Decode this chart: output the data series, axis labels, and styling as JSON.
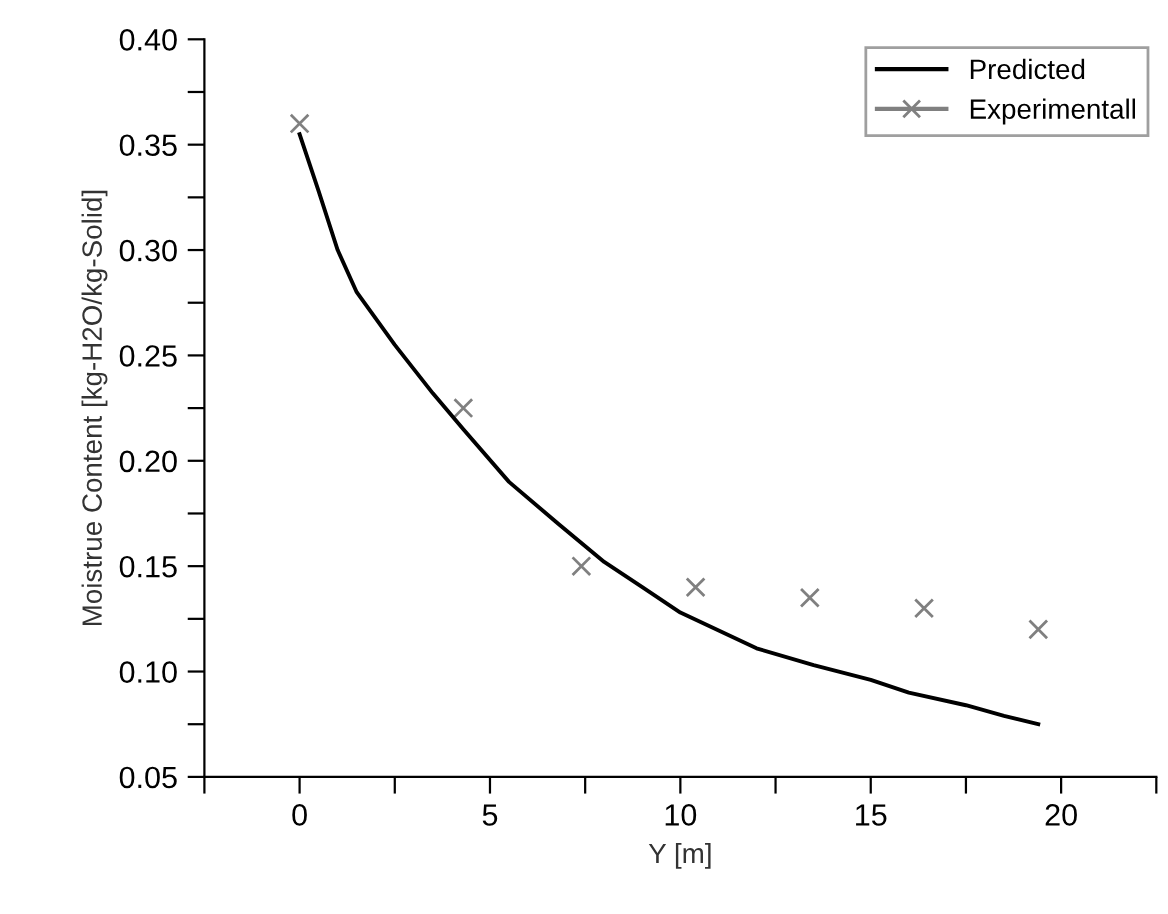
{
  "chart_data": {
    "type": "line",
    "xlabel": "Y [m]",
    "ylabel": "Moistrue Content [kg-H2O/kg-Solid]",
    "xlim": [
      -2.5,
      22.5
    ],
    "ylim": [
      0.05,
      0.4
    ],
    "xticks": [
      {
        "value": -2.5,
        "label": null
      },
      0,
      {
        "value": 2.5,
        "label": null
      },
      5,
      {
        "value": 7.5,
        "label": null
      },
      10,
      {
        "value": 12.5,
        "label": null
      },
      15,
      {
        "value": 17.5,
        "label": null
      },
      20,
      {
        "value": 22.5,
        "label": null
      }
    ],
    "yticks": [
      0.05,
      {
        "value": 0.075,
        "label": null
      },
      {
        "value": 0.1,
        "label": "0.10"
      },
      {
        "value": 0.125,
        "label": null
      },
      0.15,
      {
        "value": 0.175,
        "label": null
      },
      {
        "value": 0.2,
        "label": "0.20"
      },
      {
        "value": 0.225,
        "label": null
      },
      0.25,
      {
        "value": 0.275,
        "label": null
      },
      {
        "value": 0.3,
        "label": "0.30"
      },
      {
        "value": 0.325,
        "label": null
      },
      0.35,
      {
        "value": 0.375,
        "label": null
      },
      {
        "value": 0.4,
        "label": "0.40"
      }
    ],
    "grid": false,
    "legend": "top right",
    "series": [
      {
        "name": "Predicted",
        "color": "#000000",
        "marker": "none",
        "x": [
          0,
          0.5,
          1,
          1.5,
          2.5,
          3.5,
          4.3,
          5.5,
          6.8,
          8,
          9,
          10,
          12,
          13.5,
          15,
          16,
          17.5,
          18.5,
          19.4
        ],
        "values": [
          0.355,
          0.328,
          0.3,
          0.28,
          0.255,
          0.232,
          0.215,
          0.19,
          0.17,
          0.152,
          0.14,
          0.128,
          0.111,
          0.103,
          0.096,
          0.09,
          0.084,
          0.079,
          0.075
        ]
      },
      {
        "name": "Experimentall",
        "type": "scatter",
        "color": "#808080",
        "marker": "cross",
        "x": [
          0,
          4.3,
          7.4,
          10.4,
          13.4,
          16.4,
          19.4
        ],
        "values": [
          0.36,
          0.225,
          0.15,
          0.14,
          0.135,
          0.13,
          0.12
        ]
      }
    ]
  }
}
